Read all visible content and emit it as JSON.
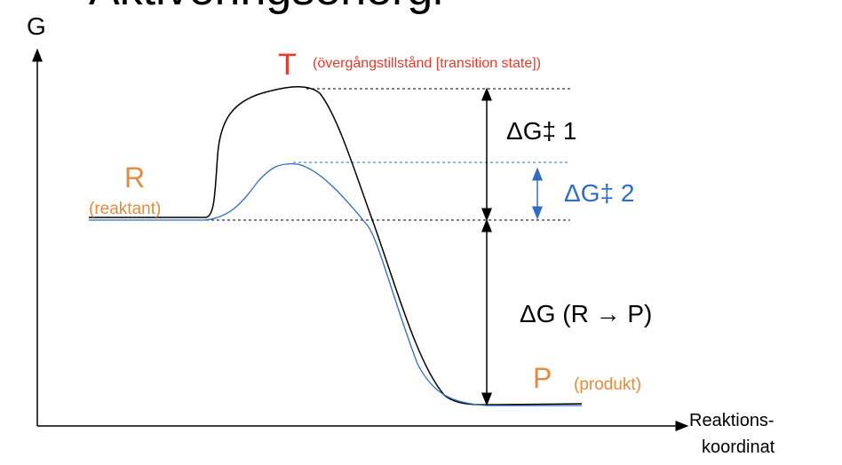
{
  "title": "Aktiveringsenergi",
  "axes": {
    "y_label": "G",
    "x_label_line1": "Reaktions-",
    "x_label_line2": "koordinat"
  },
  "transition_state": {
    "symbol": "T",
    "label": "(övergångstillstånd [transition state])"
  },
  "reactant": {
    "symbol": "R",
    "label": "(reaktant)"
  },
  "product": {
    "symbol": "P",
    "label": "(produkt)"
  },
  "delta_g1": "ΔG‡ 1",
  "delta_g2": "ΔG‡ 2",
  "delta_g": "ΔG (R → P)",
  "colors": {
    "curve1": "#000000",
    "curve2": "#2f6cc4",
    "transition": "#e8392b",
    "reactant_product": "#e58a3e"
  }
}
